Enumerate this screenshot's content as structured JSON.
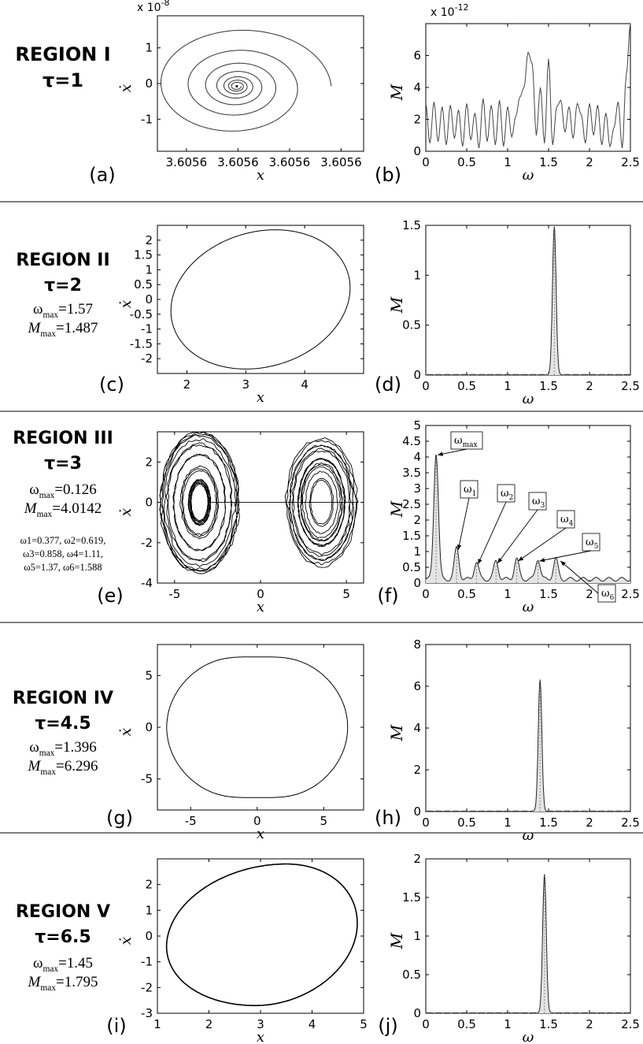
{
  "regions": [
    {
      "name": "REGION I",
      "tau": "τ=1"
    },
    {
      "name": "REGION II",
      "tau": "τ=2",
      "wmax": "=1.57",
      "mmax": "=1.487"
    },
    {
      "name": "REGION III",
      "tau": "τ=3",
      "wmax": "=0.126",
      "mmax": "=4.0142",
      "harmonics_line1": "ω1=0.377, ω2=0.619,",
      "harmonics_line2": "ω3=0.858, ω4=1.11,",
      "harmonics_line3": "ω5=1.37, ω6=1.588"
    },
    {
      "name": "REGION IV",
      "tau": "τ=4.5",
      "wmax": "=1.396",
      "mmax": "=6.296"
    },
    {
      "name": "REGION V",
      "tau": "τ=6.5",
      "wmax": "=1.45",
      "mmax": "=1.795"
    }
  ],
  "labels": {
    "omega": "ω",
    "omega_max_sub": "max",
    "M": "M",
    "M_max_sub": "max"
  },
  "chart_data": [
    {
      "type": "line",
      "panel": "(a)",
      "title": "",
      "xlabel": "x",
      "ylabel": "ẋ",
      "x_ticks": [
        "3.6056",
        "3.6056",
        "3.6056",
        "3.6056"
      ],
      "y_ticks": [
        "-1",
        "0",
        "1"
      ],
      "ylim": [
        -1.9,
        1.9
      ],
      "y_exponent": "x 10",
      "y_exponent_power": "-8",
      "shape": "inward spiral converging to (3.6056, 0)"
    },
    {
      "type": "line",
      "panel": "(b)",
      "xlabel": "ω",
      "ylabel": "M",
      "xlim": [
        0,
        2.5
      ],
      "ylim": [
        0,
        8
      ],
      "x_ticks": [
        "0",
        "0.5",
        "1",
        "1.5",
        "2",
        "2.5"
      ],
      "y_ticks": [
        "0",
        "2",
        "4",
        "6"
      ],
      "y_exponent": "x 10",
      "y_exponent_power": "-12",
      "x": [
        0,
        0.05,
        0.1,
        0.15,
        0.2,
        0.25,
        0.3,
        0.35,
        0.4,
        0.45,
        0.5,
        0.55,
        0.6,
        0.65,
        0.7,
        0.75,
        0.8,
        0.85,
        0.9,
        0.95,
        1.0,
        1.05,
        1.1,
        1.15,
        1.2,
        1.25,
        1.3,
        1.35,
        1.4,
        1.45,
        1.5,
        1.55,
        1.6,
        1.65,
        1.7,
        1.75,
        1.8,
        1.85,
        1.9,
        1.95,
        2.0,
        2.05,
        2.1,
        2.15,
        2.2,
        2.25,
        2.3,
        2.35,
        2.4,
        2.45,
        2.5
      ],
      "y": [
        3.0,
        0.5,
        3.1,
        0.6,
        2.8,
        0.4,
        2.9,
        0.8,
        2.6,
        0.3,
        3.0,
        0.7,
        2.4,
        0.2,
        3.3,
        0.6,
        2.9,
        0.4,
        3.2,
        0.3,
        2.8,
        0.9,
        2.2,
        3.4,
        4.0,
        6.2,
        5.5,
        1.0,
        4.0,
        0.5,
        5.8,
        0.4,
        2.8,
        3.2,
        1.2,
        2.8,
        0.8,
        3.0,
        2.3,
        0.5,
        3.0,
        1.0,
        2.9,
        0.4,
        2.4,
        0.3,
        1.5,
        3.1,
        0.2,
        4.8,
        8.0
      ]
    },
    {
      "type": "line",
      "panel": "(c)",
      "xlabel": "x",
      "ylabel": "ẋ",
      "xlim": [
        1.5,
        5
      ],
      "ylim": [
        -2.5,
        2.5
      ],
      "x_ticks": [
        "2",
        "3",
        "4"
      ],
      "y_ticks": [
        "-2",
        "-1.5",
        "-1",
        "-0.5",
        "0",
        "0.5",
        "1",
        "1.5",
        "2"
      ],
      "shape": "closed limit cycle, x 1.75–4.75, ẋ ±2.35"
    },
    {
      "type": "area",
      "panel": "(d)",
      "xlabel": "ω",
      "ylabel": "M",
      "xlim": [
        0,
        2.5
      ],
      "ylim": [
        0,
        1.5
      ],
      "x_ticks": [
        "0",
        "0.5",
        "1",
        "1.5",
        "2",
        "2.5"
      ],
      "y_ticks": [
        "0",
        "0.5",
        "1",
        "1.5"
      ],
      "peaks": [
        {
          "x": 1.57,
          "y": 1.487
        }
      ]
    },
    {
      "type": "line",
      "panel": "(e)",
      "xlabel": "x",
      "ylabel": "ẋ",
      "xlim": [
        -6,
        6
      ],
      "ylim": [
        -4,
        3.5
      ],
      "x_ticks": [
        "-5",
        "0",
        "5"
      ],
      "y_ticks": [
        "-4",
        "-2",
        "0",
        "2"
      ],
      "shape": "chaotic double-scroll attractor centered at x≈±3.5"
    },
    {
      "type": "area",
      "panel": "(f)",
      "xlabel": "ω",
      "ylabel": "M",
      "xlim": [
        0,
        2.5
      ],
      "ylim": [
        0,
        5
      ],
      "x_ticks": [
        "0",
        "0.5",
        "1",
        "1.5",
        "2",
        "2.5"
      ],
      "y_ticks": [
        "0",
        "0.5",
        "1",
        "1.5",
        "2",
        "2.5",
        "3",
        "3.5",
        "4",
        "4.5",
        "5"
      ],
      "peaks": [
        {
          "x": 0.126,
          "y": 4.0142
        },
        {
          "x": 0.377,
          "y": 1.0
        },
        {
          "x": 0.619,
          "y": 0.55
        },
        {
          "x": 0.858,
          "y": 0.58
        },
        {
          "x": 1.11,
          "y": 0.65
        },
        {
          "x": 1.37,
          "y": 0.65
        },
        {
          "x": 1.588,
          "y": 0.65
        }
      ],
      "annotations": [
        "ωmax",
        "ω1",
        "ω2",
        "ω3",
        "ω4",
        "ω5",
        "ω6"
      ]
    },
    {
      "type": "line",
      "panel": "(g)",
      "xlabel": "x",
      "ylabel": "ẋ",
      "xlim": [
        -7.5,
        8
      ],
      "ylim": [
        -8,
        8
      ],
      "x_ticks": [
        "-5",
        "0",
        "5"
      ],
      "y_ticks": [
        "-5",
        "0",
        "5"
      ],
      "shape": "closed limit cycle, x ±6.8, ẋ ±7.4"
    },
    {
      "type": "area",
      "panel": "(h)",
      "xlabel": "ω",
      "ylabel": "M",
      "xlim": [
        0,
        2.5
      ],
      "ylim": [
        0,
        8
      ],
      "x_ticks": [
        "0",
        "0.5",
        "1",
        "1.5",
        "2",
        "2.5"
      ],
      "y_ticks": [
        "0",
        "2",
        "4",
        "6",
        "8"
      ],
      "peaks": [
        {
          "x": 1.396,
          "y": 6.296
        }
      ]
    },
    {
      "type": "line",
      "panel": "(i)",
      "xlabel": "x",
      "ylabel": "ẋ",
      "xlim": [
        1,
        5
      ],
      "ylim": [
        -3,
        3
      ],
      "x_ticks": [
        "1",
        "2",
        "3",
        "4",
        "5"
      ],
      "y_ticks": [
        "-3",
        "-2",
        "-1",
        "0",
        "1",
        "2"
      ],
      "shape": "closed limit cycle, x 1.2–4.85, ẋ −2.7 to 2.8"
    },
    {
      "type": "area",
      "panel": "(j)",
      "xlabel": "ω",
      "ylabel": "M",
      "xlim": [
        0,
        2.5
      ],
      "ylim": [
        0,
        2
      ],
      "x_ticks": [
        "0",
        "0.5",
        "1",
        "1.5",
        "2",
        "2.5"
      ],
      "y_ticks": [
        "0",
        "0.5",
        "1",
        "1.5",
        "2"
      ],
      "peaks": [
        {
          "x": 1.45,
          "y": 1.795
        }
      ]
    }
  ]
}
